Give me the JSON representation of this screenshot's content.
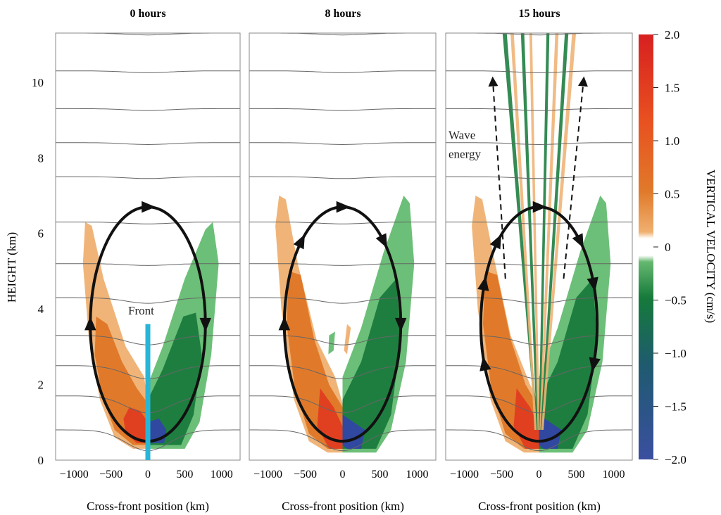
{
  "chart_data": {
    "type": "heatmap",
    "panels": [
      {
        "title": "0 hours",
        "xlabel": "Cross-front position (km)",
        "annotations": [
          "Front"
        ]
      },
      {
        "title": "8 hours",
        "xlabel": "Cross-front position (km)",
        "annotations": []
      },
      {
        "title": "15 hours",
        "xlabel": "Cross-front position (km)",
        "annotations": [
          "Wave",
          "energy"
        ]
      }
    ],
    "xlim": [
      -1250,
      1250
    ],
    "ylim": [
      0,
      11.3
    ],
    "xticks": [
      -1000,
      -500,
      0,
      500,
      1000
    ],
    "yticks": [
      0,
      2,
      4,
      6,
      8,
      10
    ],
    "ylabel": "HEIGHT (km)",
    "colorbar": {
      "label": "VERTICAL VELOCITY (cm/s)",
      "ticks": [
        "2.0",
        "1.5",
        "1.0",
        "0.5",
        "0",
        "−0.5",
        "−1.0",
        "−1.5",
        "−2.0"
      ],
      "range": [
        -2.0,
        2.0
      ],
      "colors": [
        "#3a4fa0",
        "#1f5a70",
        "#157a3a",
        "#66b870",
        "#ffffff",
        "#e8a060",
        "#e07a2a",
        "#e85020",
        "#d72020"
      ]
    },
    "circulation": {
      "center_x_km": 0,
      "center_y_km": 3.6,
      "half_width_km": 780,
      "half_height_km": 3.1
    },
    "wave_energy_arrows": [
      {
        "from": [
          -450,
          4.8
        ],
        "to": [
          -620,
          10.1
        ]
      },
      {
        "from": [
          330,
          4.8
        ],
        "to": [
          600,
          10.1
        ]
      }
    ]
  }
}
